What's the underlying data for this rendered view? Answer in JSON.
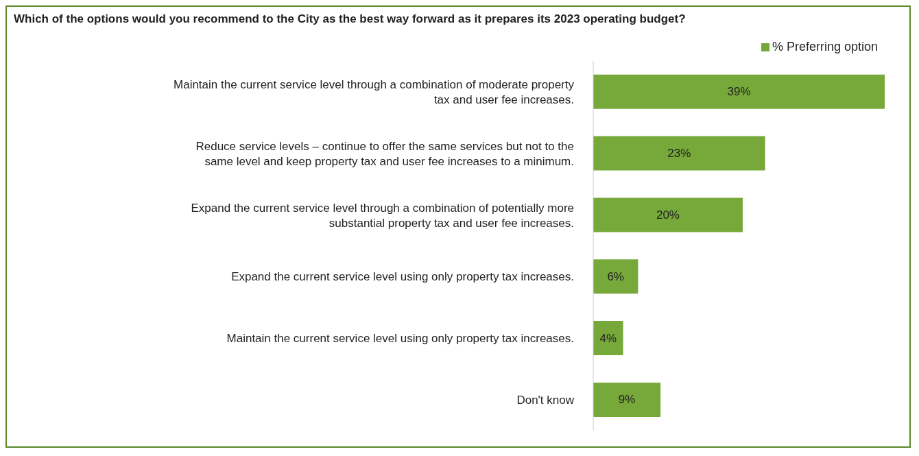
{
  "chart_data": {
    "type": "bar",
    "orientation": "horizontal",
    "title": "Which of the options would you recommend to the City as the best way forward as it prepares its 2023 operating budget?",
    "categories": [
      "Maintain the current service level through a combination of moderate property tax and user fee increases.",
      "Reduce service levels – continue to offer the same services but not to the same level and keep property tax and user fee increases to a minimum.",
      "Expand the current service level through a combination of potentially more substantial property tax and user fee increases.",
      "Expand the current service level using only property tax increases.",
      "Maintain the current service level using only property tax increases.",
      "Don't know"
    ],
    "series": [
      {
        "name": "% Preferring option",
        "color": "#77a83a",
        "values": [
          39,
          23,
          20,
          6,
          4,
          9
        ],
        "value_labels": [
          "39%",
          "23%",
          "20%",
          "6%",
          "4%",
          "9%"
        ]
      }
    ],
    "legend": "top right"
  }
}
